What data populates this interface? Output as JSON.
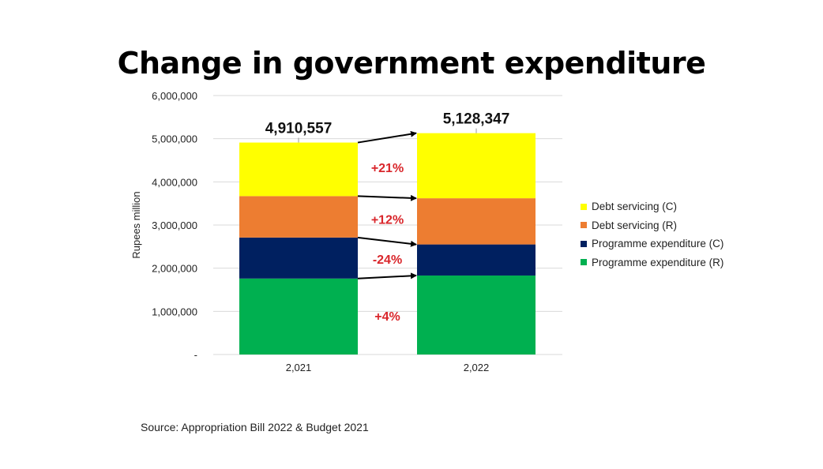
{
  "title": "Change in government expenditure",
  "source": "Source: Appropriation Bill 2022 & Budget 2021",
  "colors": {
    "debt_c": "#ffff00",
    "debt_r": "#ed7d31",
    "prog_c": "#002060",
    "prog_r": "#00b050",
    "change_label": "#d9262b",
    "grid": "#d9d9d9"
  },
  "chart_data": {
    "type": "bar",
    "stacked": true,
    "categories": [
      "2,021",
      "2,022"
    ],
    "ylabel": "Rupees million",
    "xlabel": "",
    "ylim": [
      0,
      6000000
    ],
    "y_ticks": [
      "-",
      "1,000,000",
      "2,000,000",
      "3,000,000",
      "4,000,000",
      "5,000,000",
      "6,000,000"
    ],
    "grid": true,
    "legend_position": "right",
    "series": [
      {
        "name": "Programme expenditure (R)",
        "values": [
          1760000,
          1830000
        ],
        "color_key": "prog_r"
      },
      {
        "name": "Programme expenditure (C)",
        "values": [
          950000,
          720000
        ],
        "color_key": "prog_c"
      },
      {
        "name": "Debt servicing (R)",
        "values": [
          960000,
          1070000
        ],
        "color_key": "debt_r"
      },
      {
        "name": "Debt servicing (C)",
        "values": [
          1240557,
          1508347
        ],
        "color_key": "debt_c"
      }
    ],
    "totals": [
      "4,910,557",
      "5,128,347"
    ],
    "change_labels": [
      "+4%",
      "-24%",
      "+12%",
      "+21%"
    ]
  }
}
